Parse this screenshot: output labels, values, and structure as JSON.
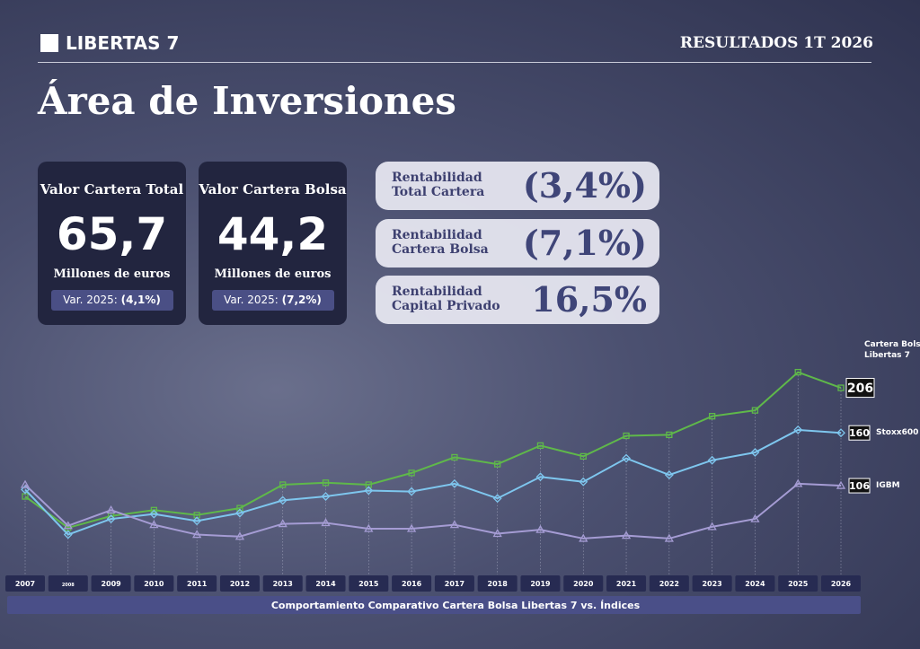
{
  "header": {
    "logo": "LIBERTAS 7",
    "report": "RESULTADOS 1T 2026"
  },
  "title": "Área de Inversiones",
  "cards": [
    {
      "title": "Valor Cartera Total",
      "value": "65,7",
      "unit": "Millones de euros",
      "var_label": "Var. 2025:",
      "var_value": "(4,1%)"
    },
    {
      "title": "Valor Cartera Bolsa",
      "value": "44,2",
      "unit": "Millones de euros",
      "var_label": "Var. 2025:",
      "var_value": "(7,2%)"
    }
  ],
  "returns": [
    {
      "label": [
        "Rentabilidad",
        "Total Cartera"
      ],
      "value": "(3,4%)"
    },
    {
      "label": [
        "Rentabilidad",
        "Cartera Bolsa"
      ],
      "value": "(7,1%)"
    },
    {
      "label": [
        "Rentabilidad",
        "Capital Privado"
      ],
      "value": "16,5%"
    }
  ],
  "chart_data": {
    "type": "line",
    "title": "Comportamiento Comparativo Cartera Bolsa Libertas 7 vs. Índices",
    "categories": [
      "2007",
      "2008",
      "2009",
      "2010",
      "2011",
      "2012",
      "2013",
      "2014",
      "2015",
      "2016",
      "2017",
      "2018",
      "2019",
      "2020",
      "2021",
      "2022",
      "2023",
      "2024",
      "2025",
      "2026"
    ],
    "ylim": [
      40,
      240
    ],
    "series": [
      {
        "name": "Cartera Bolsa Libertas 7",
        "color": "#5fb84a",
        "marker": "square",
        "values": [
          95,
          63,
          75,
          81,
          76,
          83,
          107,
          109,
          107,
          119,
          135,
          128,
          147,
          136,
          157,
          158,
          177,
          183,
          222,
          206
        ]
      },
      {
        "name": "Stoxx600",
        "color": "#7ec6ee",
        "marker": "diamond",
        "values": [
          102,
          56,
          72,
          77,
          70,
          78,
          91,
          95,
          101,
          100,
          108,
          93,
          115,
          110,
          134,
          117,
          132,
          140,
          163,
          160
        ]
      },
      {
        "name": "IGBM",
        "color": "#a59cd4",
        "marker": "triangle",
        "values": [
          107,
          65,
          81,
          66,
          56,
          54,
          67,
          68,
          62,
          62,
          66,
          57,
          61,
          52,
          55,
          52,
          64,
          72,
          108,
          106
        ]
      }
    ]
  }
}
